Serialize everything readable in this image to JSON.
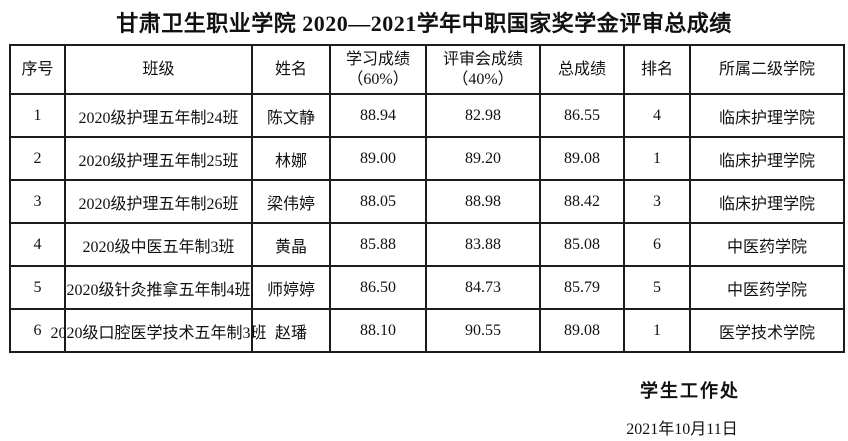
{
  "title": "甘肃卫生职业学院 2020—2021学年中职国家奖学金评审总成绩",
  "table": {
    "columns": [
      {
        "label": "序号"
      },
      {
        "label": "班级"
      },
      {
        "label": "姓名"
      },
      {
        "label": "学习成绩\n（60%）"
      },
      {
        "label": "评审会成绩\n（40%）"
      },
      {
        "label": "总成绩"
      },
      {
        "label": "排名"
      },
      {
        "label": "所属二级学院"
      }
    ],
    "rows": [
      {
        "index": "1",
        "class": "2020级护理五年制24班",
        "name": "陈文静",
        "study_score": "88.94",
        "review_score": "82.98",
        "total_score": "86.55",
        "rank": "4",
        "college": "临床护理学院"
      },
      {
        "index": "2",
        "class": "2020级护理五年制25班",
        "name": "林娜",
        "study_score": "89.00",
        "review_score": "89.20",
        "total_score": "89.08",
        "rank": "1",
        "college": "临床护理学院"
      },
      {
        "index": "3",
        "class": "2020级护理五年制26班",
        "name": "梁伟婷",
        "study_score": "88.05",
        "review_score": "88.98",
        "total_score": "88.42",
        "rank": "3",
        "college": "临床护理学院"
      },
      {
        "index": "4",
        "class": "2020级中医五年制3班",
        "name": "黄晶",
        "study_score": "85.88",
        "review_score": "83.88",
        "total_score": "85.08",
        "rank": "6",
        "college": "中医药学院"
      },
      {
        "index": "5",
        "class": "2020级针灸推拿五年制4班",
        "name": "师婷婷",
        "study_score": "86.50",
        "review_score": "84.73",
        "total_score": "85.79",
        "rank": "5",
        "college": "中医药学院"
      },
      {
        "index": "6",
        "class": "2020级口腔医学技术五年制3班",
        "name": "赵璠",
        "study_score": "88.10",
        "review_score": "90.55",
        "total_score": "89.08",
        "rank": "1",
        "college": "医学技术学院"
      }
    ]
  },
  "footer": {
    "department": "学生工作处",
    "date": "2021年10月11日"
  },
  "colors": {
    "text": "#111111",
    "border": "#1c1c1c",
    "background": "#ffffff"
  }
}
